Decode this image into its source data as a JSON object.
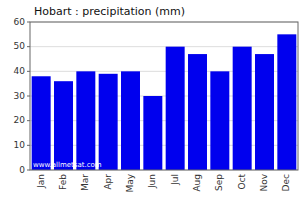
{
  "chart_data": {
    "type": "bar",
    "title": "Hobart : precipitation (mm)",
    "categories": [
      "Jan",
      "Feb",
      "Mar",
      "Apr",
      "May",
      "Jun",
      "Jul",
      "Aug",
      "Sep",
      "Oct",
      "Nov",
      "Dec"
    ],
    "values": [
      38,
      36,
      40,
      39,
      40,
      30,
      50,
      47,
      40,
      50,
      47,
      55
    ],
    "color": "#0000ee",
    "ylim": [
      0,
      60
    ],
    "yticks": [
      0,
      10,
      20,
      30,
      40,
      50,
      60
    ],
    "grid": true,
    "annotation": "www.allmetsat.com"
  }
}
